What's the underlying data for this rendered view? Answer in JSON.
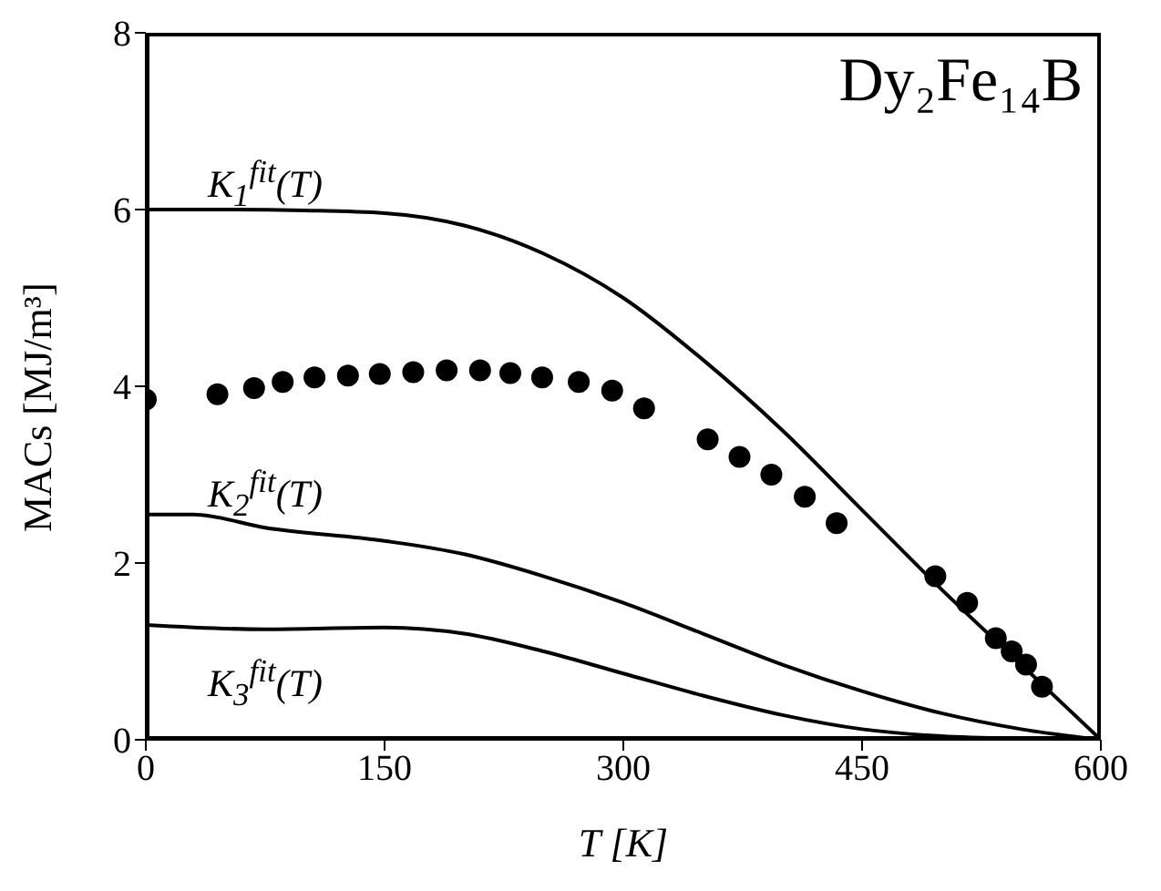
{
  "chart_data": {
    "type": "line",
    "title": "Dy₂Fe₁₄B",
    "xlabel": "T [K]",
    "ylabel": "MACs [MJ/m³]",
    "xlim": [
      0,
      600
    ],
    "ylim": [
      0,
      8
    ],
    "xticks": [
      0,
      150,
      300,
      450,
      600
    ],
    "yticks": [
      0,
      2,
      4,
      6,
      8
    ],
    "line_style": "solid",
    "series": [
      {
        "color": "#000000",
        "x": [
          0,
          50,
          100,
          150,
          200,
          250,
          300,
          350,
          400,
          450,
          500,
          550,
          600
        ],
        "values": [
          6.0,
          6.0,
          5.99,
          5.96,
          5.82,
          5.5,
          5.0,
          4.3,
          3.5,
          2.6,
          1.7,
          0.85,
          0
        ]
      },
      {
        "color": "#000000",
        "x": [
          0,
          30,
          75,
          150,
          200,
          250,
          300,
          350,
          400,
          450,
          500,
          550,
          600
        ],
        "values": [
          2.55,
          2.55,
          2.4,
          2.25,
          2.1,
          1.85,
          1.55,
          1.2,
          0.85,
          0.55,
          0.3,
          0.12,
          0
        ]
      },
      {
        "color": "#000000",
        "x": [
          0,
          75,
          150,
          200,
          250,
          300,
          350,
          400,
          450,
          500,
          550,
          600
        ],
        "values": [
          1.3,
          1.25,
          1.27,
          1.2,
          1.0,
          0.75,
          0.5,
          0.28,
          0.12,
          0.04,
          0.01,
          0
        ]
      },
      {
        "type": "scatter",
        "color": "#000000",
        "marker": "circle",
        "x": [
          0,
          45,
          68,
          86,
          106,
          127,
          147,
          168,
          189,
          210,
          229,
          249,
          272,
          293,
          313,
          353,
          373,
          393,
          414,
          434,
          496,
          516,
          534,
          544,
          553,
          563
        ],
        "values": [
          3.85,
          3.91,
          3.98,
          4.05,
          4.1,
          4.12,
          4.14,
          4.16,
          4.18,
          4.18,
          4.15,
          4.1,
          4.05,
          3.95,
          3.75,
          3.4,
          3.2,
          3.0,
          2.75,
          2.45,
          1.85,
          1.55,
          1.15,
          1.0,
          0.85,
          0.6
        ]
      }
    ],
    "annotations": [
      "K$_{1}$$^{fit}$(T)",
      "K$_{2}$$^{fit}$(T)",
      "K$_{3}$$^{fit}$(T)"
    ]
  }
}
